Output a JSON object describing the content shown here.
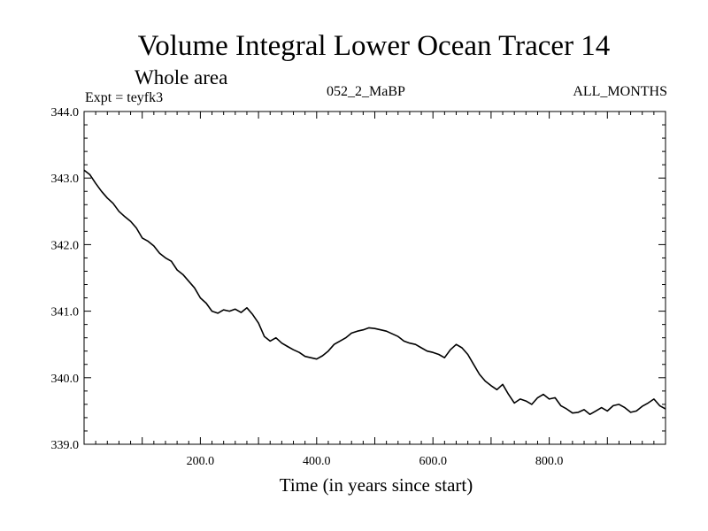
{
  "chart_data": {
    "type": "line",
    "title": "Volume Integral Lower Ocean Tracer 14",
    "subtitle": "Whole area",
    "experiment": "Expt = teyfk3",
    "period": "052_2_MaBP",
    "months": "ALL_MONTHS",
    "xlabel": "Time (in years since start)",
    "ylabel": "",
    "xlim": [
      0,
      1000
    ],
    "ylim": [
      339.0,
      344.0
    ],
    "x_ticks": [
      200,
      400,
      600,
      800
    ],
    "x_tick_labels": [
      "200.0",
      "400.0",
      "600.0",
      "800.0"
    ],
    "y_ticks": [
      339.0,
      340.0,
      341.0,
      342.0,
      343.0,
      344.0
    ],
    "y_tick_labels": [
      "339.0",
      "340.0",
      "341.0",
      "342.0",
      "343.0",
      "344.0"
    ],
    "grid": false,
    "series": [
      {
        "name": "Volume Integral Lower Ocean Tracer 14",
        "color": "#000000",
        "x": [
          0,
          10,
          20,
          30,
          40,
          50,
          60,
          70,
          80,
          90,
          100,
          110,
          120,
          130,
          140,
          150,
          160,
          170,
          180,
          190,
          200,
          210,
          220,
          230,
          240,
          250,
          260,
          270,
          280,
          290,
          300,
          310,
          320,
          330,
          340,
          350,
          360,
          370,
          380,
          390,
          400,
          410,
          420,
          430,
          440,
          450,
          460,
          470,
          480,
          490,
          500,
          510,
          520,
          530,
          540,
          550,
          560,
          570,
          580,
          590,
          600,
          610,
          620,
          630,
          640,
          650,
          660,
          670,
          680,
          690,
          700,
          710,
          720,
          730,
          740,
          750,
          760,
          770,
          780,
          790,
          800,
          810,
          820,
          830,
          840,
          850,
          860,
          870,
          880,
          890,
          900,
          910,
          920,
          930,
          940,
          950,
          960,
          970,
          980,
          990,
          1000
        ],
        "values": [
          343.12,
          343.05,
          342.92,
          342.8,
          342.7,
          342.62,
          342.5,
          342.42,
          342.35,
          342.25,
          342.1,
          342.05,
          341.98,
          341.87,
          341.8,
          341.75,
          341.62,
          341.55,
          341.45,
          341.35,
          341.2,
          341.12,
          341.0,
          340.97,
          341.02,
          341.0,
          341.03,
          340.98,
          341.05,
          340.95,
          340.82,
          340.62,
          340.55,
          340.6,
          340.52,
          340.47,
          340.42,
          340.38,
          340.32,
          340.3,
          340.28,
          340.33,
          340.4,
          340.5,
          340.55,
          340.6,
          340.67,
          340.7,
          340.72,
          340.75,
          340.74,
          340.72,
          340.7,
          340.66,
          340.62,
          340.55,
          340.52,
          340.5,
          340.45,
          340.4,
          340.38,
          340.35,
          340.3,
          340.42,
          340.5,
          340.45,
          340.35,
          340.2,
          340.05,
          339.95,
          339.88,
          339.82,
          339.9,
          339.75,
          339.62,
          339.68,
          339.65,
          339.6,
          339.7,
          339.75,
          339.68,
          339.7,
          339.58,
          339.53,
          339.47,
          339.48,
          339.52,
          339.45,
          339.5,
          339.55,
          339.5,
          339.58,
          339.6,
          339.55,
          339.48,
          339.5,
          339.57,
          339.62,
          339.68,
          339.58,
          339.53
        ]
      }
    ]
  }
}
